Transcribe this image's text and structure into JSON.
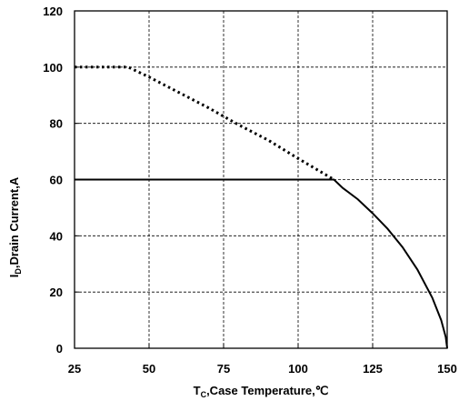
{
  "chart_data": {
    "type": "line",
    "xlabel": {
      "main": "T",
      "sub": "C",
      "rest": ",Case Temperature,℃"
    },
    "ylabel": {
      "main": "I",
      "sub": "D",
      "rest": ",Drain Current,A"
    },
    "xlim": [
      25,
      150
    ],
    "ylim": [
      0,
      120
    ],
    "xticks": [
      25,
      50,
      75,
      100,
      125,
      150
    ],
    "yticks": [
      0,
      20,
      40,
      60,
      80,
      100,
      120
    ],
    "grid": true,
    "series": [
      {
        "style": "dotted",
        "x": [
          25,
          43,
          50,
          60,
          70,
          80,
          90,
          100,
          112
        ],
        "y": [
          100,
          100,
          96.5,
          91,
          85.5,
          79.5,
          74,
          67.5,
          60
        ]
      },
      {
        "style": "solid",
        "x": [
          25,
          112,
          115,
          120,
          125,
          130,
          135,
          140,
          145,
          148,
          149.5,
          150
        ],
        "y": [
          60,
          60,
          57,
          53,
          48,
          42.5,
          36,
          28,
          18,
          10,
          4,
          0
        ]
      }
    ]
  }
}
